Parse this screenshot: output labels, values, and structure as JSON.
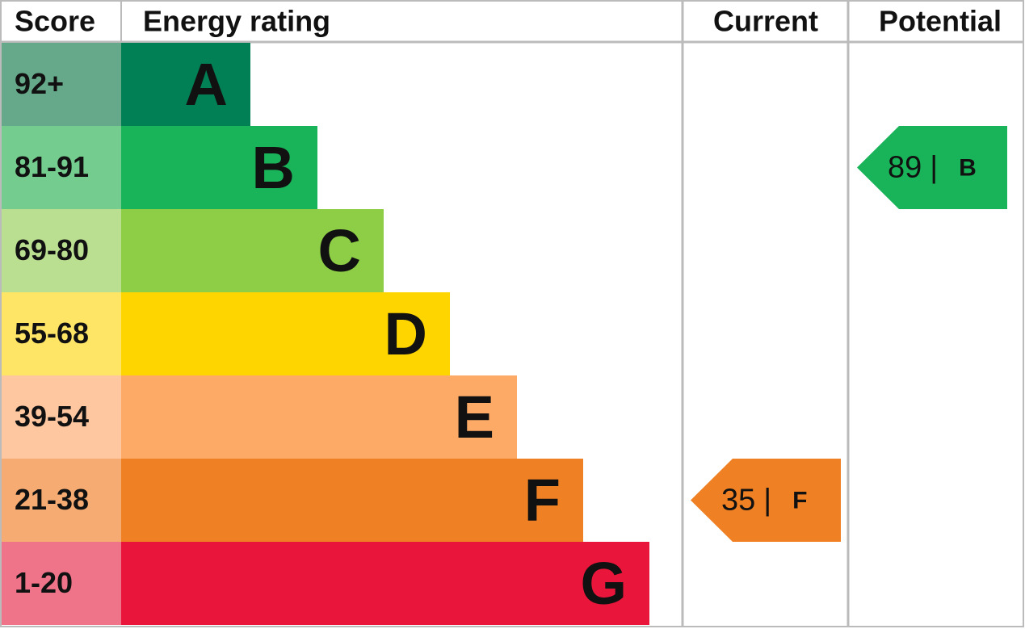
{
  "header": {
    "score": "Score",
    "energy_rating": "Energy rating",
    "current": "Current",
    "potential": "Potential"
  },
  "rows": [
    {
      "score": "92+",
      "rating": "A",
      "color": "#008054",
      "score_color": "#66a98a"
    },
    {
      "score": "81-91",
      "rating": "B",
      "color": "#19b459",
      "score_color": "#74cc8f"
    },
    {
      "score": "69-80",
      "rating": "C",
      "color": "#8dce46",
      "score_color": "#badf90"
    },
    {
      "score": "55-68",
      "rating": "D",
      "color": "#ffd500",
      "score_color": "#ffe566"
    },
    {
      "score": "39-54",
      "rating": "E",
      "color": "#fcaa65",
      "score_color": "#fec7a0"
    },
    {
      "score": "21-38",
      "rating": "F",
      "color": "#ef8023",
      "score_color": "#f5ab72"
    },
    {
      "score": "1-20",
      "rating": "G",
      "color": "#e9153b",
      "score_color": "#f07489"
    }
  ],
  "current": {
    "value": 35,
    "separator": "|",
    "rating": "F"
  },
  "potential": {
    "value": 89,
    "separator": "|",
    "rating": "B"
  }
}
